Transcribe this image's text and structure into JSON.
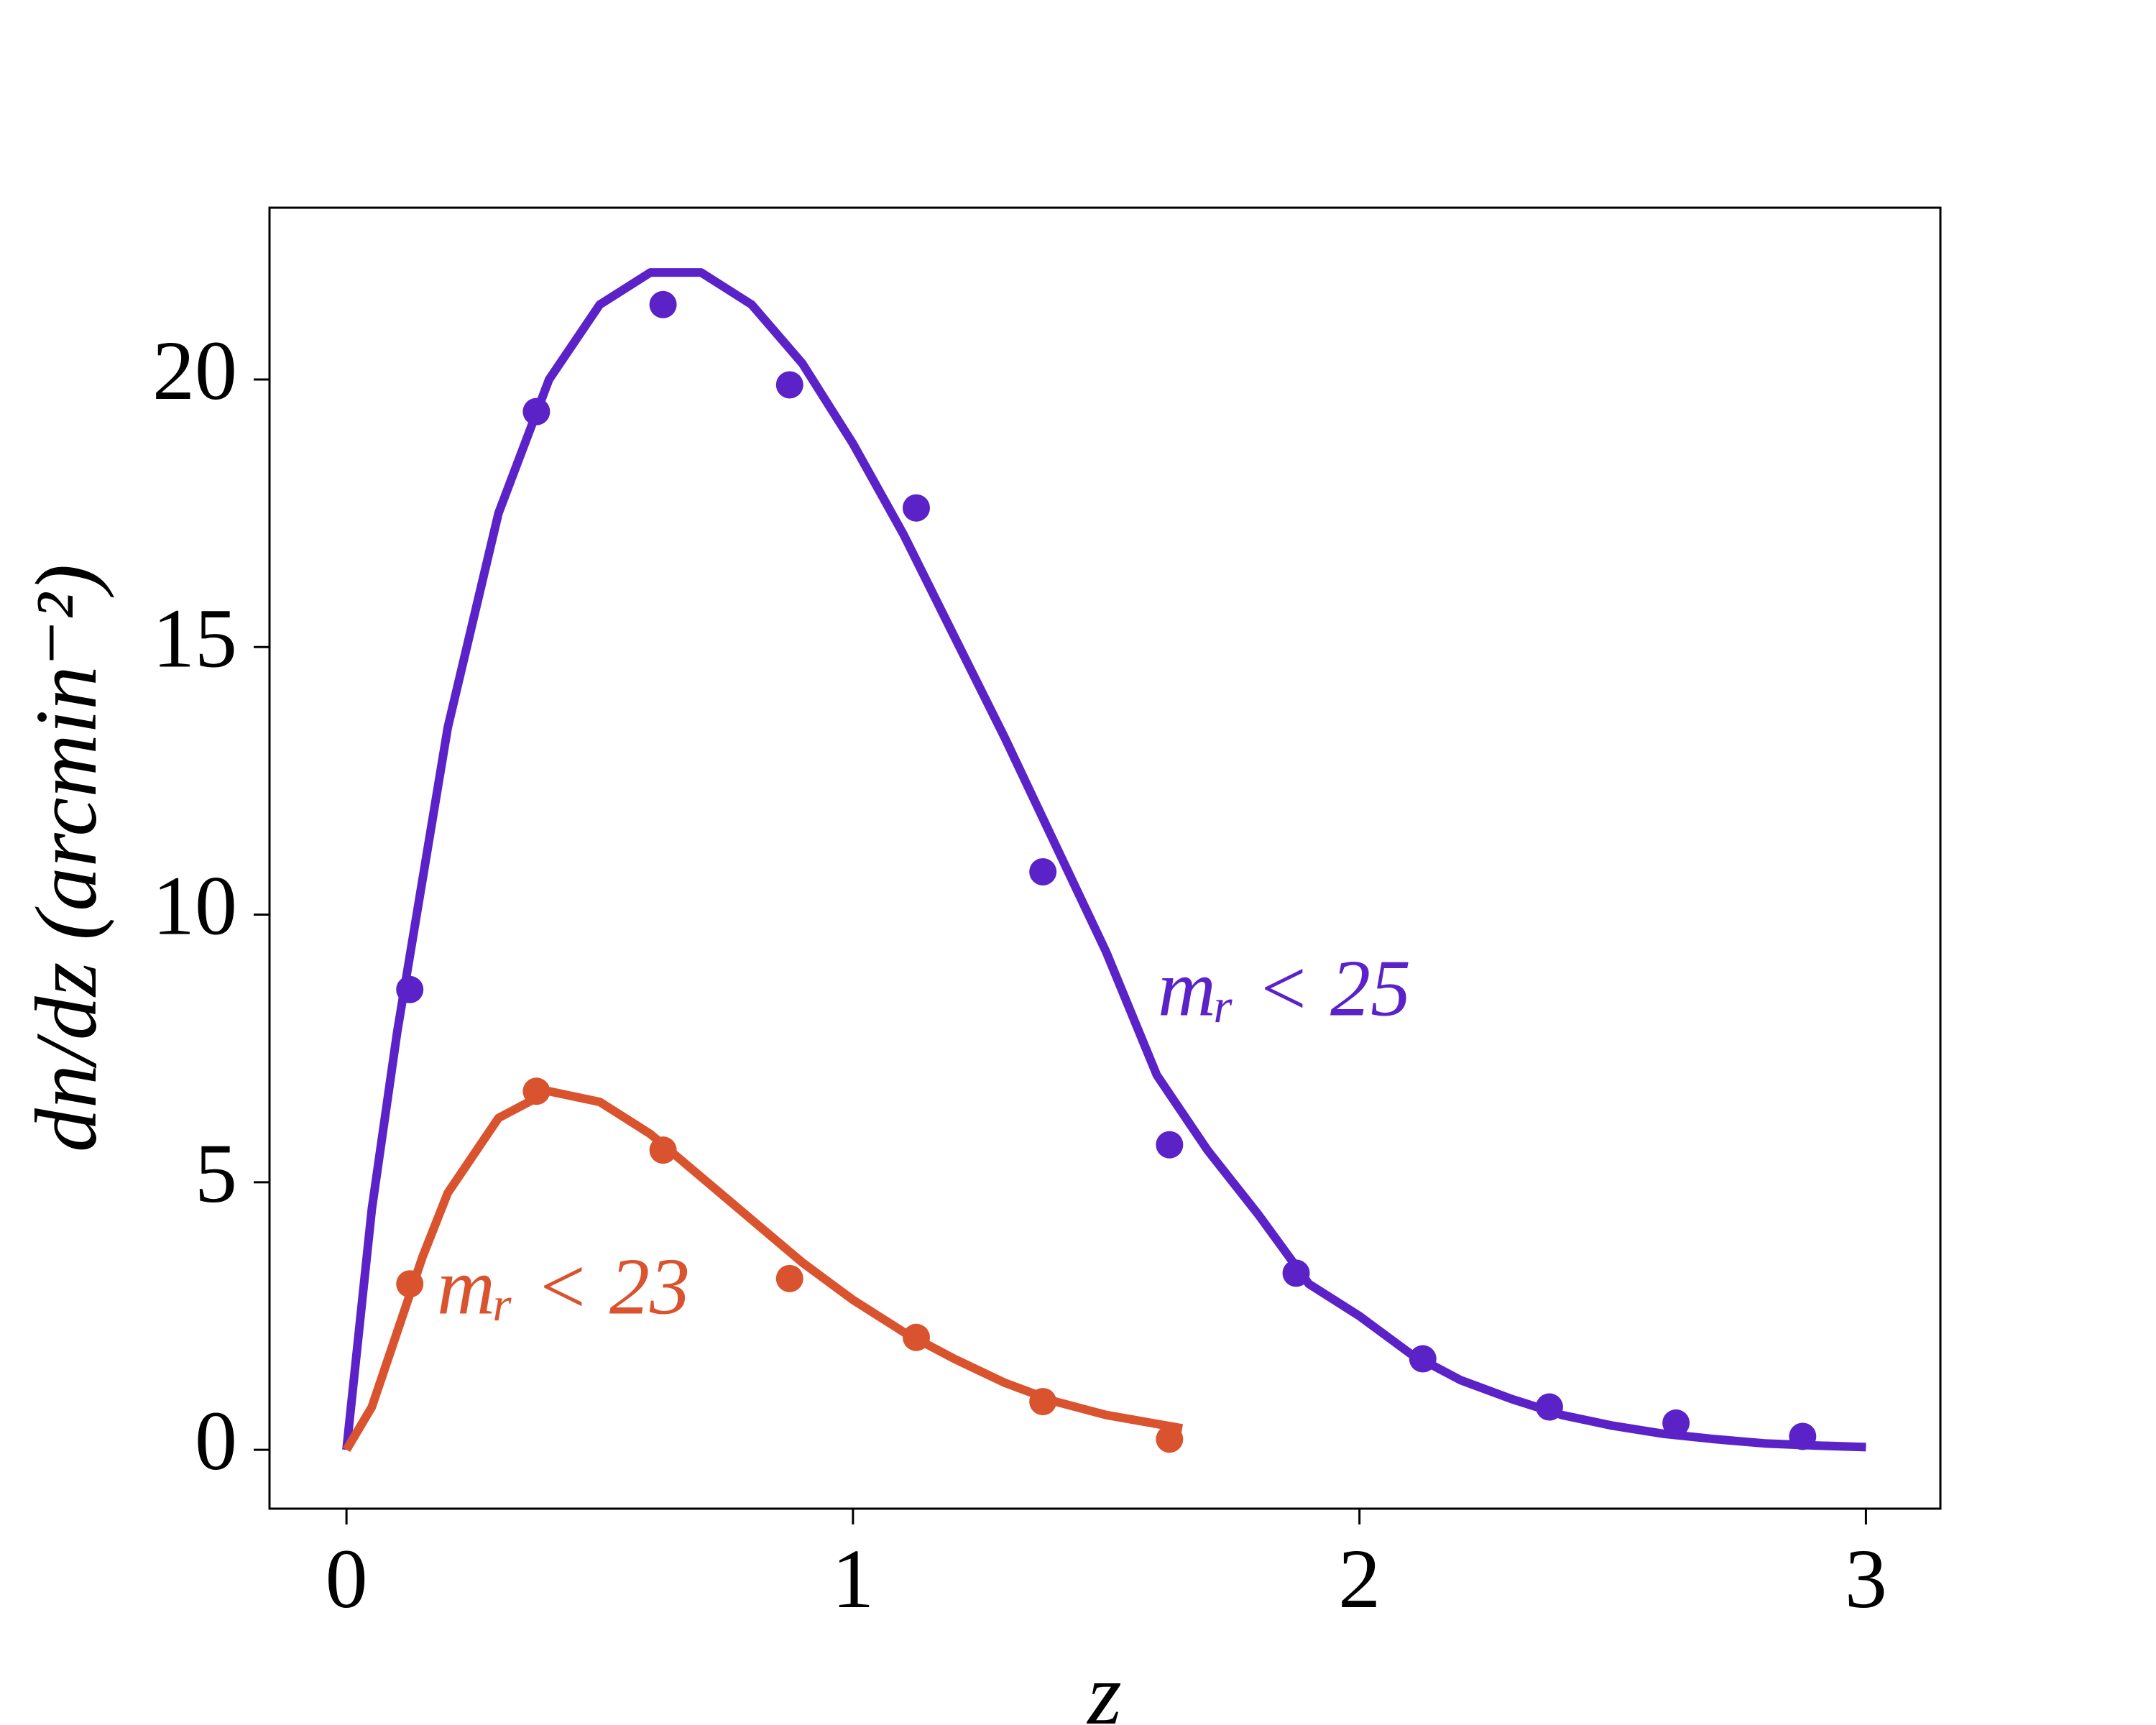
{
  "chart_data": {
    "type": "line",
    "xlabel": "z",
    "ylabel": "dn/dz (arcmin⁻²)",
    "xlim": [
      -0.152,
      3.147
    ],
    "ylim": [
      -1.1,
      23.21
    ],
    "xticks": [
      0,
      1,
      2,
      3
    ],
    "yticks": [
      0,
      5,
      10,
      15,
      20
    ],
    "grid": false,
    "series": [
      {
        "name": "mᵣ < 25",
        "color": "#5b22c8",
        "x": [
          0.125,
          0.375,
          0.625,
          0.875,
          1.125,
          1.375,
          1.625,
          1.875,
          2.125,
          2.375,
          2.625,
          2.875
        ],
        "values": [
          8.6,
          19.4,
          21.4,
          19.9,
          17.6,
          10.8,
          5.7,
          3.3,
          1.7,
          0.8,
          0.5,
          0.25
        ],
        "fit_x": [
          0,
          0.05,
          0.1,
          0.2,
          0.3,
          0.4,
          0.5,
          0.6,
          0.7,
          0.8,
          0.9,
          1.0,
          1.1,
          1.2,
          1.3,
          1.4,
          1.5,
          1.6,
          1.7,
          1.8,
          1.9,
          2.0,
          2.1,
          2.2,
          2.3,
          2.4,
          2.5,
          2.6,
          2.7,
          2.8,
          2.9,
          3.0
        ],
        "fit_values": [
          0,
          4.5,
          7.8,
          13.5,
          17.5,
          20.0,
          21.4,
          22.0,
          22.0,
          21.4,
          20.3,
          18.8,
          17.1,
          15.2,
          13.3,
          11.3,
          9.3,
          7.0,
          5.6,
          4.4,
          3.1,
          2.5,
          1.8,
          1.3,
          0.95,
          0.65,
          0.45,
          0.3,
          0.2,
          0.12,
          0.08,
          0.05
        ]
      },
      {
        "name": "mᵣ < 23",
        "color": "#d9532e",
        "x": [
          0.125,
          0.375,
          0.625,
          0.875,
          1.125,
          1.375,
          1.625
        ],
        "values": [
          3.1,
          6.7,
          5.6,
          3.2,
          2.1,
          0.9,
          0.2
        ],
        "fit_x": [
          0,
          0.05,
          0.1,
          0.15,
          0.2,
          0.3,
          0.4,
          0.5,
          0.6,
          0.7,
          0.8,
          0.9,
          1.0,
          1.1,
          1.2,
          1.3,
          1.4,
          1.5,
          1.65
        ],
        "fit_values": [
          0,
          0.8,
          2.2,
          3.6,
          4.8,
          6.2,
          6.7,
          6.5,
          5.9,
          5.1,
          4.3,
          3.5,
          2.8,
          2.2,
          1.7,
          1.25,
          0.9,
          0.65,
          0.4
        ]
      }
    ]
  }
}
